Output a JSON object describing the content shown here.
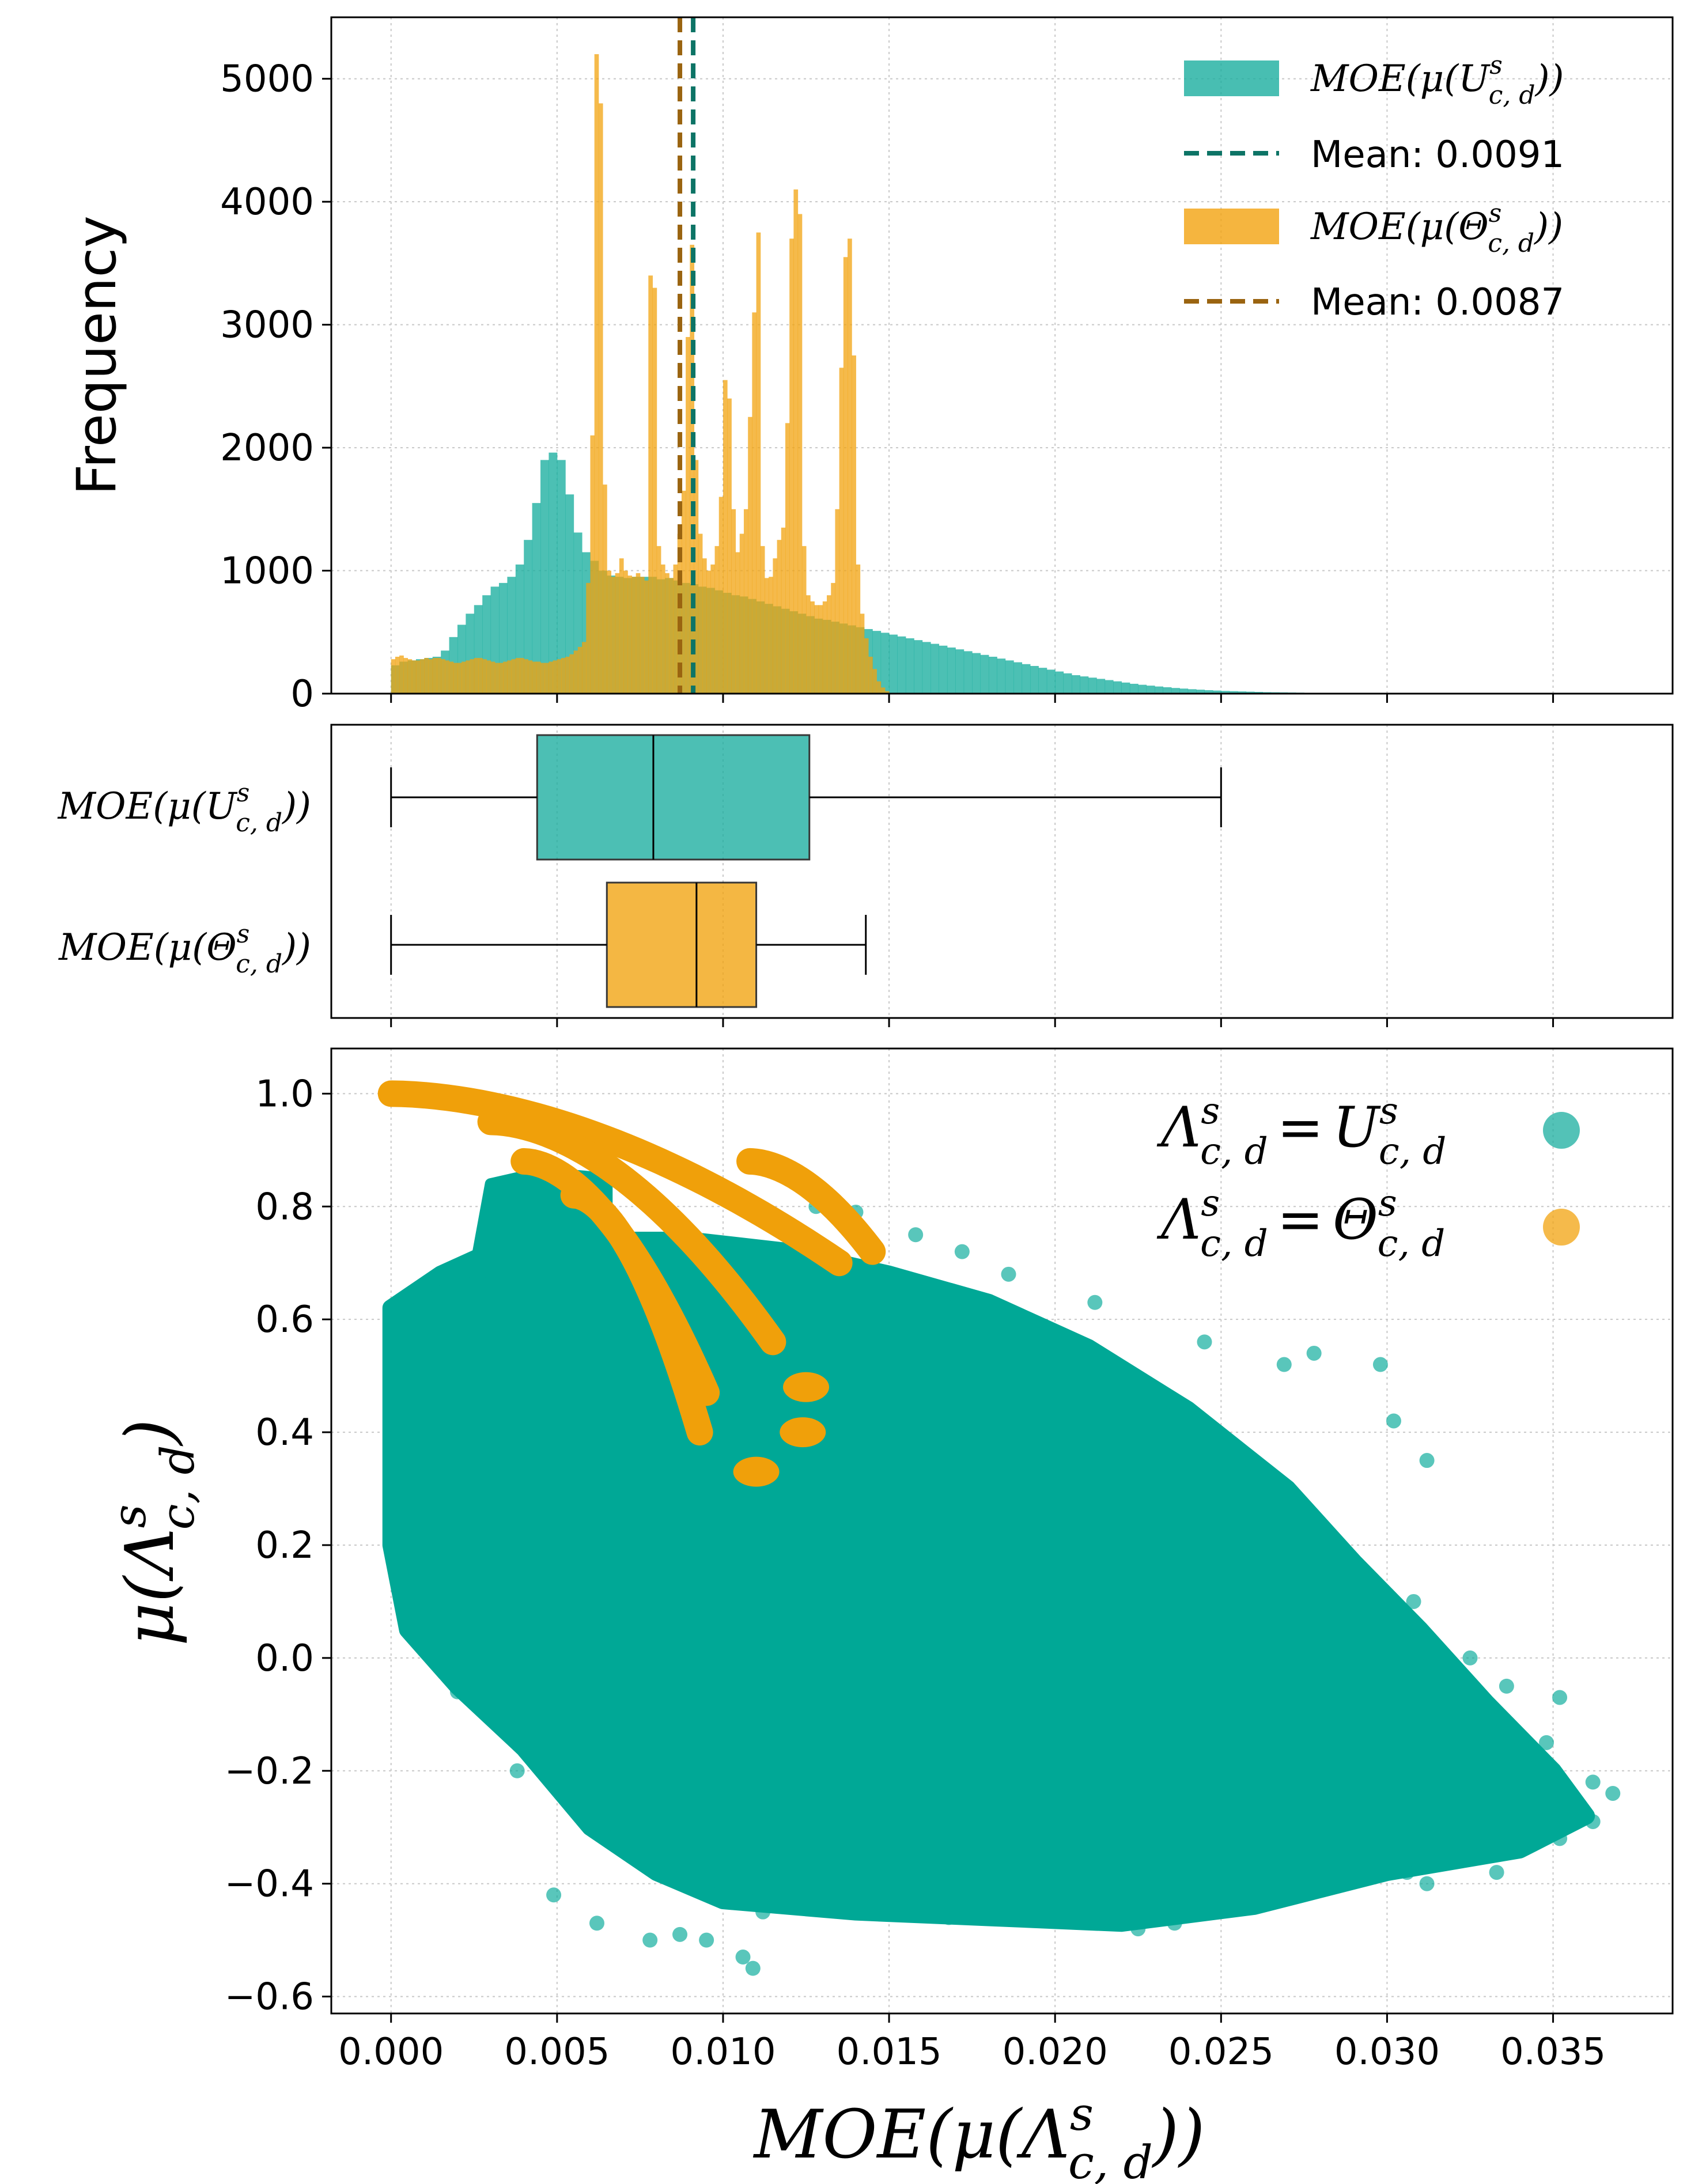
{
  "chart_data": [
    {
      "type": "histogram",
      "ylabel": "Frequency",
      "xlim": [
        -0.0018,
        0.0386
      ],
      "ylim": [
        0,
        5500
      ],
      "yticks": [
        0,
        1000,
        2000,
        3000,
        4000,
        5000
      ],
      "grid": true,
      "legend_position": "top-right",
      "series": [
        {
          "name": "MOE(μ(U^s_{c,d}))",
          "label_base": "MOE(μ(U",
          "label_close": "))",
          "color": "#1aae9f",
          "mean_label": "Mean: 0.0091",
          "mean": 0.0091,
          "mean_color": "#0d7466",
          "bin_start": 0.0,
          "bin_width": 0.00025,
          "counts": [
            230,
            260,
            270,
            280,
            290,
            300,
            350,
            460,
            560,
            650,
            720,
            800,
            870,
            900,
            950,
            1050,
            1250,
            1550,
            1900,
            1960,
            1900,
            1620,
            1310,
            1150,
            1080,
            1000,
            960,
            950,
            940,
            950,
            950,
            950,
            930,
            940,
            920,
            900,
            890,
            870,
            860,
            840,
            820,
            800,
            790,
            770,
            750,
            730,
            710,
            690,
            670,
            650,
            630,
            610,
            600,
            585,
            570,
            555,
            540,
            525,
            510,
            495,
            480,
            465,
            450,
            435,
            420,
            405,
            390,
            375,
            360,
            345,
            330,
            315,
            300,
            285,
            270,
            255,
            240,
            225,
            210,
            195,
            180,
            165,
            150,
            140,
            130,
            120,
            110,
            100,
            90,
            80,
            72,
            65,
            58,
            52,
            46,
            41,
            36,
            32,
            28,
            25,
            22,
            20,
            18,
            16,
            14,
            12,
            11,
            10,
            9,
            8,
            7,
            6,
            5,
            4,
            3,
            3,
            2,
            2,
            1,
            1
          ]
        },
        {
          "name": "MOE(μ(Θ^s_{c,d}))",
          "label_base": "MOE(μ(Θ",
          "label_close": "))",
          "color": "#f2a30f",
          "mean_label": "Mean: 0.0087",
          "mean": 0.0087,
          "mean_color": "#9a6410",
          "bin_start": 0.0,
          "bin_width": 0.000125,
          "counts": [
            280,
            300,
            310,
            290,
            280,
            270,
            270,
            280,
            290,
            280,
            290,
            290,
            280,
            270,
            260,
            250,
            250,
            260,
            270,
            280,
            290,
            290,
            280,
            270,
            260,
            250,
            250,
            260,
            270,
            280,
            290,
            290,
            280,
            270,
            260,
            260,
            250,
            250,
            260,
            270,
            280,
            290,
            300,
            320,
            350,
            380,
            420,
            900,
            2100,
            5200,
            4800,
            1700,
            1000,
            950,
            980,
            1100,
            1000,
            960,
            950,
            980,
            950,
            920,
            3400,
            3300,
            1200,
            1050,
            980,
            940,
            1050,
            1300,
            1650,
            2900,
            3650,
            1900,
            1300,
            1100,
            1000,
            1050,
            1200,
            1600,
            2550,
            2400,
            1500,
            1150,
            1300,
            1500,
            2250,
            3100,
            3750,
            1200,
            940,
            950,
            1100,
            1250,
            1350,
            2200,
            3700,
            4100,
            3900,
            1200,
            800,
            750,
            720,
            720,
            750,
            800,
            900,
            1500,
            2650,
            3550,
            3700,
            2750,
            1050,
            650,
            450,
            300,
            200,
            100,
            50,
            20
          ]
        }
      ]
    },
    {
      "type": "boxplot",
      "categories": [
        "MOE(μ(U^s_{c,d}))",
        "MOE(μ(Θ^s_{c,d}))"
      ],
      "boxes": [
        {
          "name": "MOE(μ(U^s_{c,d}))",
          "label_base": "MOE(μ(U",
          "label_close": "))",
          "whisker_low": 0.0,
          "q1": 0.0044,
          "median": 0.0079,
          "q3": 0.0126,
          "whisker_high": 0.025,
          "color": "#1aae9f"
        },
        {
          "name": "MOE(μ(Θ^s_{c,d}))",
          "label_base": "MOE(μ(Θ",
          "label_close": "))",
          "whisker_low": 0.0,
          "q1": 0.0065,
          "median": 0.0092,
          "q3": 0.011,
          "whisker_high": 0.0143,
          "color": "#f2a30f"
        }
      ]
    },
    {
      "type": "scatter",
      "xlabel": "MOE(μ(Λ^s_{c,d}))",
      "xlabel_base": "MOE(μ(Λ",
      "xlabel_close": "))",
      "ylabel": "μ(Λ^s_{c,d})",
      "ylabel_base": "μ(Λ",
      "ylabel_close": ")",
      "xlim": [
        -0.0018,
        0.0386
      ],
      "ylim": [
        -0.63,
        1.08
      ],
      "xticks": [
        "0.000",
        "0.005",
        "0.010",
        "0.015",
        "0.020",
        "0.025",
        "0.030",
        "0.035"
      ],
      "xtick_values": [
        0.0,
        0.005,
        0.01,
        0.015,
        0.02,
        0.025,
        0.03,
        0.035
      ],
      "yticks": [
        "−0.6",
        "−0.4",
        "−0.2",
        "0.0",
        "0.2",
        "0.4",
        "0.6",
        "0.8",
        "1.0"
      ],
      "ytick_values": [
        -0.6,
        -0.4,
        -0.2,
        0.0,
        0.2,
        0.4,
        0.6,
        0.8,
        1.0
      ],
      "grid": true,
      "legend_position": "top-right",
      "legend": [
        {
          "lhs": "Λ",
          "rhs": "U",
          "eq": "=",
          "sup": "s",
          "sub": "c, d",
          "color": "#1aae9f"
        },
        {
          "lhs": "Λ",
          "rhs": "Θ",
          "eq": "=",
          "sup": "s",
          "sub": "c, d",
          "color": "#f2a30f"
        }
      ],
      "series": [
        {
          "name": "U^s_{c,d}",
          "color": "#00a896",
          "cloud_polygon": [
            [
              0.0,
              0.62
            ],
            [
              0.0015,
              0.68
            ],
            [
              0.003,
              0.72
            ],
            [
              0.006,
              0.74
            ],
            [
              0.009,
              0.74
            ],
            [
              0.012,
              0.72
            ],
            [
              0.015,
              0.68
            ],
            [
              0.018,
              0.63
            ],
            [
              0.021,
              0.55
            ],
            [
              0.024,
              0.44
            ],
            [
              0.027,
              0.3
            ],
            [
              0.029,
              0.17
            ],
            [
              0.031,
              0.05
            ],
            [
              0.033,
              -0.08
            ],
            [
              0.035,
              -0.2
            ],
            [
              0.036,
              -0.28
            ],
            [
              0.034,
              -0.34
            ],
            [
              0.03,
              -0.38
            ],
            [
              0.026,
              -0.44
            ],
            [
              0.022,
              -0.47
            ],
            [
              0.018,
              -0.46
            ],
            [
              0.014,
              -0.45
            ],
            [
              0.01,
              -0.43
            ],
            [
              0.008,
              -0.38
            ],
            [
              0.006,
              -0.3
            ],
            [
              0.004,
              -0.16
            ],
            [
              0.002,
              -0.05
            ],
            [
              0.0005,
              0.05
            ],
            [
              0.0,
              0.2
            ]
          ],
          "cap_polygon": [
            [
              0.0025,
              0.68
            ],
            [
              0.003,
              0.84
            ],
            [
              0.0045,
              0.86
            ],
            [
              0.0065,
              0.85
            ],
            [
              0.0065,
              0.76
            ],
            [
              0.005,
              0.66
            ],
            [
              0.003,
              0.65
            ]
          ],
          "outliers": [
            [
              0.0278,
              0.54
            ],
            [
              0.0298,
              0.52
            ],
            [
              0.0302,
              0.42
            ],
            [
              0.0312,
              0.35
            ],
            [
              0.0308,
              0.1
            ],
            [
              0.0325,
              0.0
            ],
            [
              0.0336,
              -0.05
            ],
            [
              0.0352,
              -0.07
            ],
            [
              0.0348,
              -0.15
            ],
            [
              0.0362,
              -0.22
            ],
            [
              0.0368,
              -0.24
            ],
            [
              0.0362,
              -0.29
            ],
            [
              0.0342,
              -0.31
            ],
            [
              0.0333,
              -0.38
            ],
            [
              0.0352,
              -0.32
            ],
            [
              0.0312,
              -0.4
            ],
            [
              0.0306,
              -0.38
            ],
            [
              0.0262,
              -0.42
            ],
            [
              0.0236,
              -0.47
            ],
            [
              0.0225,
              -0.48
            ],
            [
              0.0168,
              -0.46
            ],
            [
              0.0142,
              -0.44
            ],
            [
              0.0112,
              -0.45
            ],
            [
              0.0095,
              -0.5
            ],
            [
              0.0106,
              -0.53
            ],
            [
              0.0109,
              -0.55
            ],
            [
              0.0087,
              -0.49
            ],
            [
              0.0078,
              -0.5
            ],
            [
              0.0062,
              -0.47
            ],
            [
              0.0049,
              -0.42
            ],
            [
              0.0038,
              -0.2
            ],
            [
              0.002,
              -0.06
            ],
            [
              0.0158,
              0.75
            ],
            [
              0.0172,
              0.72
            ],
            [
              0.0186,
              0.68
            ],
            [
              0.0212,
              0.63
            ],
            [
              0.0245,
              0.56
            ],
            [
              0.0269,
              0.52
            ],
            [
              0.0128,
              0.8
            ],
            [
              0.014,
              0.79
            ]
          ]
        },
        {
          "name": "Θ^s_{c,d}",
          "color": "#f0a00a",
          "arcs": [
            {
              "x0": 0.0,
              "x1": 0.0135,
              "y_start": 1.0,
              "y_end": 0.7
            },
            {
              "x0": 0.003,
              "x1": 0.0115,
              "y_start": 0.95,
              "y_end": 0.56
            },
            {
              "x0": 0.004,
              "x1": 0.0095,
              "y_start": 0.88,
              "y_end": 0.47
            },
            {
              "x0": 0.0055,
              "x1": 0.0093,
              "y_start": 0.82,
              "y_end": 0.4
            },
            {
              "x0": 0.0108,
              "x1": 0.0145,
              "y_start": 0.88,
              "y_end": 0.72
            }
          ],
          "blobs": [
            [
              0.0125,
              0.48
            ],
            [
              0.0124,
              0.4
            ],
            [
              0.011,
              0.33
            ]
          ]
        }
      ]
    }
  ]
}
